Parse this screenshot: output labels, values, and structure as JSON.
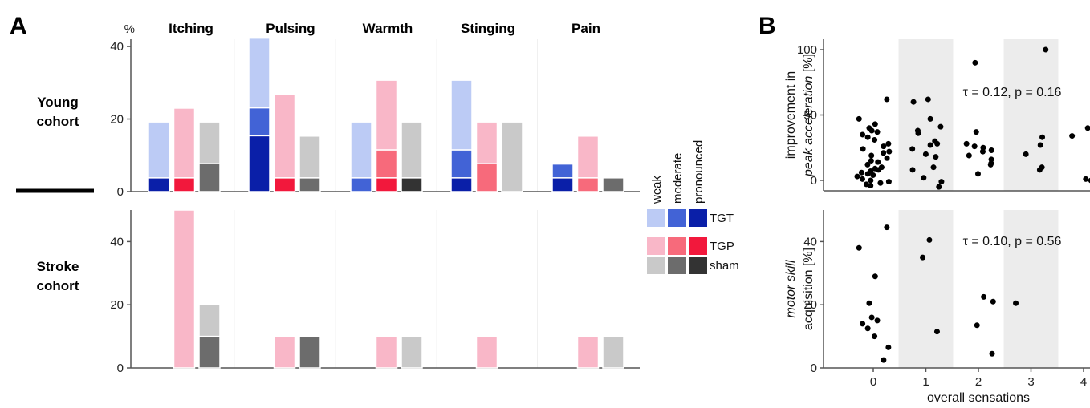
{
  "panel_labels": {
    "a": "A",
    "b": "B"
  },
  "colors": {
    "TGT": [
      "#bccbf5",
      "#4263d6",
      "#0a1fa8"
    ],
    "TGP": [
      "#f9b7c8",
      "#f76a7b",
      "#f2183c"
    ],
    "sham": [
      "#c9c9c9",
      "#6c6c6c",
      "#333333"
    ],
    "band": "#ececec",
    "point": "#000000",
    "axis": "#555555"
  },
  "chart_data": [
    {
      "type": "bar",
      "panel": "A",
      "stacked": true,
      "unit_label": "%",
      "categories": [
        "Itching",
        "Pulsing",
        "Warmth",
        "Stinging",
        "Pain"
      ],
      "row_labels": [
        "Young\ncohort",
        "Stroke\ncohort"
      ],
      "groups": [
        "TGT",
        "TGP",
        "sham"
      ],
      "levels": [
        "weak",
        "moderate",
        "pronounced"
      ],
      "legend_position": "right",
      "rows": [
        {
          "name": "Young cohort",
          "ylim": [
            0,
            42
          ],
          "yticks": [
            0,
            20,
            40
          ],
          "bars": {
            "TGT": [
              [
                15.4,
                0,
                3.8
              ],
              [
                19.2,
                7.7,
                15.4
              ],
              [
                15.4,
                3.8,
                0
              ],
              [
                19.2,
                7.7,
                3.8
              ],
              [
                0,
                3.8,
                3.8
              ]
            ],
            "TGP": [
              [
                19.2,
                0,
                3.8
              ],
              [
                23.1,
                0,
                3.8
              ],
              [
                19.2,
                7.7,
                3.8
              ],
              [
                11.5,
                7.7,
                0
              ],
              [
                11.5,
                3.8,
                0
              ]
            ],
            "sham": [
              [
                11.5,
                7.7,
                0
              ],
              [
                11.5,
                3.8,
                0
              ],
              [
                15.4,
                0,
                3.8
              ],
              [
                19.2,
                0,
                0
              ],
              [
                0,
                3.8,
                0
              ]
            ]
          }
        },
        {
          "name": "Stroke cohort",
          "ylim": [
            0,
            50
          ],
          "yticks": [
            0,
            20,
            40
          ],
          "bars": {
            "TGT": [
              [
                0,
                0,
                0
              ],
              [
                0,
                0,
                0
              ],
              [
                0,
                0,
                0
              ],
              [
                0,
                0,
                0
              ],
              [
                0,
                0,
                0
              ]
            ],
            "TGP": [
              [
                50,
                0,
                0
              ],
              [
                10,
                0,
                0
              ],
              [
                10,
                0,
                0
              ],
              [
                10,
                0,
                0
              ],
              [
                10,
                0,
                0
              ]
            ],
            "sham": [
              [
                10,
                10,
                0
              ],
              [
                0,
                10,
                0
              ],
              [
                10,
                0,
                0
              ],
              [
                0,
                0,
                0
              ],
              [
                10,
                0,
                0
              ]
            ]
          }
        }
      ]
    },
    {
      "type": "scatter",
      "panel": "B",
      "ylabel": [
        "improvement in",
        "peak acceleration [%]"
      ],
      "ylabel_italic": "peak acceleration",
      "xlabel": "overall sensations",
      "xticks": [
        0,
        1,
        2,
        3,
        4
      ],
      "yticks": [
        0,
        50,
        100
      ],
      "ylim": [
        -8,
        108
      ],
      "shaded_x": [
        1,
        3
      ],
      "annotation": "τ = 0.12, p = 0.16",
      "points": [
        [
          0,
          62
        ],
        [
          0,
          47
        ],
        [
          0,
          43
        ],
        [
          0,
          40
        ],
        [
          0,
          38
        ],
        [
          0,
          37
        ],
        [
          0,
          35
        ],
        [
          0,
          33
        ],
        [
          0,
          31
        ],
        [
          0,
          28
        ],
        [
          0,
          26
        ],
        [
          0,
          24
        ],
        [
          0,
          22
        ],
        [
          0,
          21
        ],
        [
          0,
          19
        ],
        [
          0,
          17
        ],
        [
          0,
          15
        ],
        [
          0,
          14
        ],
        [
          0,
          12
        ],
        [
          0,
          10
        ],
        [
          0,
          9
        ],
        [
          0,
          8
        ],
        [
          0,
          7
        ],
        [
          0,
          6
        ],
        [
          0,
          5
        ],
        [
          0,
          4
        ],
        [
          0,
          3
        ],
        [
          0,
          1
        ],
        [
          0,
          0
        ],
        [
          0,
          -1
        ],
        [
          0,
          -2
        ],
        [
          0,
          -3
        ],
        [
          0,
          -4
        ],
        [
          1,
          62
        ],
        [
          1,
          60
        ],
        [
          1,
          47
        ],
        [
          1,
          41
        ],
        [
          1,
          38
        ],
        [
          1,
          36
        ],
        [
          1,
          30
        ],
        [
          1,
          28
        ],
        [
          1,
          27
        ],
        [
          1,
          24
        ],
        [
          1,
          20
        ],
        [
          1,
          18
        ],
        [
          1,
          10
        ],
        [
          1,
          8
        ],
        [
          1,
          2
        ],
        [
          1,
          -1
        ],
        [
          1,
          -5
        ],
        [
          2,
          90
        ],
        [
          2,
          37
        ],
        [
          2,
          28
        ],
        [
          2,
          26
        ],
        [
          2,
          25
        ],
        [
          2,
          23
        ],
        [
          2,
          22
        ],
        [
          2,
          19
        ],
        [
          2,
          16
        ],
        [
          2,
          13
        ],
        [
          2,
          12
        ],
        [
          2,
          5
        ],
        [
          3,
          100
        ],
        [
          3,
          33
        ],
        [
          3,
          27
        ],
        [
          3,
          20
        ],
        [
          3,
          10
        ],
        [
          3,
          8
        ],
        [
          4,
          49
        ],
        [
          4,
          40
        ],
        [
          4,
          34
        ],
        [
          4,
          1
        ],
        [
          4,
          0
        ],
        [
          4,
          0
        ]
      ]
    },
    {
      "type": "scatter",
      "panel": "B",
      "ylabel": [
        "motor skill",
        "acquisition [%]"
      ],
      "ylabel_italic": "motor skill",
      "xlabel": "overall sensations",
      "xticks": [
        0,
        1,
        2,
        3,
        4
      ],
      "yticks": [
        0,
        20,
        40
      ],
      "ylim": [
        0,
        50
      ],
      "shaded_x": [
        1,
        3
      ],
      "annotation": "τ = 0.10, p = 0.56",
      "points": [
        [
          0,
          44.5
        ],
        [
          0,
          38
        ],
        [
          0,
          29
        ],
        [
          0,
          20.5
        ],
        [
          0,
          16
        ],
        [
          0,
          15
        ],
        [
          0,
          14
        ],
        [
          0,
          12.5
        ],
        [
          0,
          10
        ],
        [
          0,
          6.5
        ],
        [
          0,
          2.5
        ],
        [
          1,
          40.5
        ],
        [
          1,
          35
        ],
        [
          1,
          11.5
        ],
        [
          2,
          22.5
        ],
        [
          2,
          21
        ],
        [
          2,
          13.5
        ],
        [
          2,
          4.5
        ],
        [
          3,
          20.5
        ],
        [
          4,
          33.5
        ]
      ]
    }
  ]
}
